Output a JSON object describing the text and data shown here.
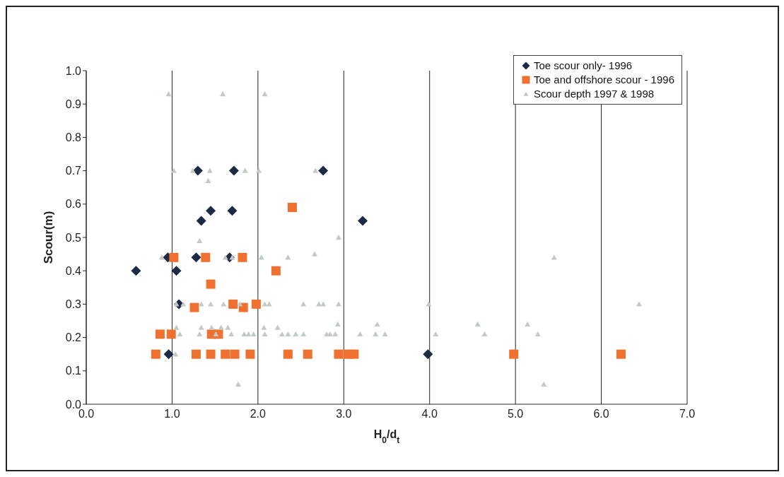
{
  "chart_data": {
    "type": "scatter",
    "xlabel": "H$_{0}$/d$_{t}$",
    "ylabel": "Scour(m)",
    "xlim": [
      0,
      7
    ],
    "xticks": [
      {
        "value": 0,
        "label": "0.0"
      },
      {
        "value": 1,
        "label": "1.0"
      },
      {
        "value": 2,
        "label": "2.0"
      },
      {
        "value": 3,
        "label": "3.0"
      },
      {
        "value": 4,
        "label": "4.0"
      },
      {
        "value": 5,
        "label": "5.0"
      },
      {
        "value": 6,
        "label": "6.0"
      },
      {
        "value": 7,
        "label": "7.0"
      }
    ],
    "ylim": [
      0,
      1
    ],
    "yticks": [
      {
        "value": 0,
        "label": "0.0"
      },
      {
        "value": 0.1,
        "label": "0.1"
      },
      {
        "value": 0.2,
        "label": "0.2"
      },
      {
        "value": 0.3,
        "label": "0.3"
      },
      {
        "value": 0.4,
        "label": "0.4"
      },
      {
        "value": 0.5,
        "label": "0.5"
      },
      {
        "value": 0.6,
        "label": "0.6"
      },
      {
        "value": 0.7,
        "label": "0.7"
      },
      {
        "value": 0.8,
        "label": "0.8"
      },
      {
        "value": 0.9,
        "label": "0.9"
      },
      {
        "value": 1,
        "label": "1.0"
      }
    ],
    "grid": "x",
    "legend": "top right",
    "series": [
      {
        "name": "Toe scour only- 1996",
        "color": "#1c2a44",
        "marker": "diamond",
        "x": [
          0.58,
          0.95,
          1.28,
          1.67,
          1.05,
          1.08,
          0.96,
          1.3,
          1.72,
          1.45,
          1.7,
          1.34,
          2.76,
          3.22,
          3.98
        ],
        "values": [
          0.4,
          0.44,
          0.44,
          0.44,
          0.4,
          0.3,
          0.15,
          0.7,
          0.7,
          0.58,
          0.58,
          0.55,
          0.7,
          0.55,
          0.15
        ]
      },
      {
        "name": "Toe and offshore scour - 1996",
        "color": "#f07030",
        "marker": "square",
        "x": [
          1.02,
          1.39,
          1.82,
          2.21,
          1.45,
          1.26,
          1.71,
          1.83,
          1.98,
          0.86,
          0.99,
          1.46,
          1.54,
          0.81,
          1.28,
          1.45,
          1.62,
          1.73,
          1.91,
          2.35,
          2.58,
          2.94,
          3.05,
          3.12,
          2.4,
          4.98,
          6.23
        ],
        "values": [
          0.44,
          0.44,
          0.44,
          0.4,
          0.36,
          0.29,
          0.3,
          0.29,
          0.3,
          0.21,
          0.21,
          0.21,
          0.21,
          0.15,
          0.15,
          0.15,
          0.15,
          0.15,
          0.15,
          0.15,
          0.15,
          0.15,
          0.15,
          0.15,
          0.59,
          0.15,
          0.15
        ]
      },
      {
        "name": "Scour depth 1997 & 1998",
        "color": "#c2cac4",
        "marker": "triangle",
        "x": [
          0.96,
          1.59,
          2.08,
          1.02,
          1.24,
          1.44,
          1.85,
          2.01,
          2.67,
          1.42,
          1.32,
          2.94,
          0.88,
          1.62,
          1.7,
          2.04,
          2.35,
          2.66,
          1.05,
          1.13,
          1.34,
          1.45,
          1.6,
          1.79,
          2.08,
          2.13,
          2.53,
          2.71,
          2.76,
          2.94,
          3.99,
          6.44,
          5.45,
          5.14,
          5.26,
          5.33,
          2.93,
          3.39,
          4.56,
          1.05,
          1.34,
          1.46,
          1.57,
          1.65,
          2.07,
          2.23,
          1.09,
          1.32,
          1.51,
          1.69,
          1.84,
          1.89,
          1.95,
          2.08,
          2.28,
          2.35,
          2.44,
          2.53,
          2.8,
          2.84,
          2.9,
          3.19,
          3.37,
          3.48,
          4.07,
          4.64,
          1.04,
          1.77
        ],
        "values": [
          0.93,
          0.93,
          0.93,
          0.7,
          0.7,
          0.7,
          0.7,
          0.7,
          0.7,
          0.67,
          0.49,
          0.5,
          0.44,
          0.44,
          0.44,
          0.44,
          0.44,
          0.45,
          0.3,
          0.3,
          0.3,
          0.3,
          0.3,
          0.3,
          0.3,
          0.3,
          0.3,
          0.3,
          0.3,
          0.3,
          0.3,
          0.3,
          0.44,
          0.24,
          0.21,
          0.06,
          0.24,
          0.24,
          0.24,
          0.23,
          0.23,
          0.23,
          0.23,
          0.23,
          0.23,
          0.23,
          0.21,
          0.21,
          0.21,
          0.21,
          0.21,
          0.21,
          0.21,
          0.21,
          0.21,
          0.21,
          0.21,
          0.21,
          0.21,
          0.21,
          0.21,
          0.21,
          0.21,
          0.21,
          0.21,
          0.21,
          0.15,
          0.06
        ]
      }
    ]
  }
}
